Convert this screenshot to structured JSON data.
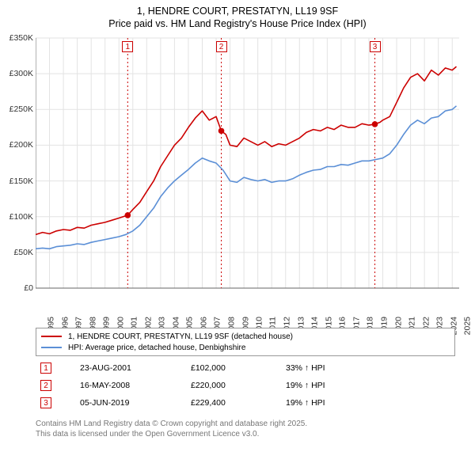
{
  "title_line1": "1, HENDRE COURT, PRESTATYN, LL19 9SF",
  "title_line2": "Price paid vs. HM Land Registry's House Price Index (HPI)",
  "chart": {
    "type": "line",
    "background_color": "#ffffff",
    "grid_color": "#e3e3e3",
    "axis_color": "#666666",
    "x_years": [
      1995,
      1996,
      1997,
      1998,
      1999,
      2000,
      2001,
      2002,
      2003,
      2004,
      2005,
      2006,
      2007,
      2008,
      2009,
      2010,
      2011,
      2012,
      2013,
      2014,
      2015,
      2016,
      2017,
      2018,
      2019,
      2020,
      2021,
      2022,
      2023,
      2024,
      2025
    ],
    "x_min": 1995,
    "x_max": 2025.5,
    "y_min": 0,
    "y_max": 350000,
    "y_tick_step": 50000,
    "y_tick_labels": [
      "£0",
      "£50K",
      "£100K",
      "£150K",
      "£200K",
      "£250K",
      "£300K",
      "£350K"
    ],
    "series": [
      {
        "name": "1, HENDRE COURT, PRESTATYN, LL19 9SF (detached house)",
        "color": "#cc0000",
        "width": 1.6,
        "points": [
          [
            1995,
            75000
          ],
          [
            1995.5,
            78000
          ],
          [
            1996,
            76000
          ],
          [
            1996.5,
            80000
          ],
          [
            1997,
            82000
          ],
          [
            1997.5,
            81000
          ],
          [
            1998,
            85000
          ],
          [
            1998.5,
            84000
          ],
          [
            1999,
            88000
          ],
          [
            1999.5,
            90000
          ],
          [
            2000,
            92000
          ],
          [
            2000.5,
            95000
          ],
          [
            2001,
            98000
          ],
          [
            2001.63,
            102000
          ],
          [
            2002,
            110000
          ],
          [
            2002.5,
            120000
          ],
          [
            2003,
            135000
          ],
          [
            2003.5,
            150000
          ],
          [
            2004,
            170000
          ],
          [
            2004.5,
            185000
          ],
          [
            2005,
            200000
          ],
          [
            2005.5,
            210000
          ],
          [
            2006,
            225000
          ],
          [
            2006.5,
            238000
          ],
          [
            2007,
            248000
          ],
          [
            2007.5,
            235000
          ],
          [
            2008,
            240000
          ],
          [
            2008.37,
            220000
          ],
          [
            2008.7,
            215000
          ],
          [
            2009,
            200000
          ],
          [
            2009.5,
            198000
          ],
          [
            2010,
            210000
          ],
          [
            2010.5,
            205000
          ],
          [
            2011,
            200000
          ],
          [
            2011.5,
            205000
          ],
          [
            2012,
            198000
          ],
          [
            2012.5,
            202000
          ],
          [
            2013,
            200000
          ],
          [
            2013.5,
            205000
          ],
          [
            2014,
            210000
          ],
          [
            2014.5,
            218000
          ],
          [
            2015,
            222000
          ],
          [
            2015.5,
            220000
          ],
          [
            2016,
            225000
          ],
          [
            2016.5,
            222000
          ],
          [
            2017,
            228000
          ],
          [
            2017.5,
            225000
          ],
          [
            2018,
            225000
          ],
          [
            2018.5,
            230000
          ],
          [
            2019,
            228000
          ],
          [
            2019.43,
            229400
          ],
          [
            2019.8,
            232000
          ],
          [
            2020,
            235000
          ],
          [
            2020.5,
            240000
          ],
          [
            2021,
            260000
          ],
          [
            2021.5,
            280000
          ],
          [
            2022,
            295000
          ],
          [
            2022.5,
            300000
          ],
          [
            2023,
            290000
          ],
          [
            2023.5,
            305000
          ],
          [
            2024,
            298000
          ],
          [
            2024.5,
            308000
          ],
          [
            2025,
            305000
          ],
          [
            2025.3,
            310000
          ]
        ]
      },
      {
        "name": "HPI: Average price, detached house, Denbighshire",
        "color": "#5b8fd6",
        "width": 1.6,
        "points": [
          [
            1995,
            55000
          ],
          [
            1995.5,
            56000
          ],
          [
            1996,
            55000
          ],
          [
            1996.5,
            58000
          ],
          [
            1997,
            59000
          ],
          [
            1997.5,
            60000
          ],
          [
            1998,
            62000
          ],
          [
            1998.5,
            61000
          ],
          [
            1999,
            64000
          ],
          [
            1999.5,
            66000
          ],
          [
            2000,
            68000
          ],
          [
            2000.5,
            70000
          ],
          [
            2001,
            72000
          ],
          [
            2001.5,
            75000
          ],
          [
            2002,
            80000
          ],
          [
            2002.5,
            88000
          ],
          [
            2003,
            100000
          ],
          [
            2003.5,
            112000
          ],
          [
            2004,
            128000
          ],
          [
            2004.5,
            140000
          ],
          [
            2005,
            150000
          ],
          [
            2005.5,
            158000
          ],
          [
            2006,
            166000
          ],
          [
            2006.5,
            175000
          ],
          [
            2007,
            182000
          ],
          [
            2007.5,
            178000
          ],
          [
            2008,
            175000
          ],
          [
            2008.5,
            165000
          ],
          [
            2009,
            150000
          ],
          [
            2009.5,
            148000
          ],
          [
            2010,
            155000
          ],
          [
            2010.5,
            152000
          ],
          [
            2011,
            150000
          ],
          [
            2011.5,
            152000
          ],
          [
            2012,
            148000
          ],
          [
            2012.5,
            150000
          ],
          [
            2013,
            150000
          ],
          [
            2013.5,
            153000
          ],
          [
            2014,
            158000
          ],
          [
            2014.5,
            162000
          ],
          [
            2015,
            165000
          ],
          [
            2015.5,
            166000
          ],
          [
            2016,
            170000
          ],
          [
            2016.5,
            170000
          ],
          [
            2017,
            173000
          ],
          [
            2017.5,
            172000
          ],
          [
            2018,
            175000
          ],
          [
            2018.5,
            178000
          ],
          [
            2019,
            178000
          ],
          [
            2019.5,
            180000
          ],
          [
            2020,
            182000
          ],
          [
            2020.5,
            188000
          ],
          [
            2021,
            200000
          ],
          [
            2021.5,
            215000
          ],
          [
            2022,
            228000
          ],
          [
            2022.5,
            235000
          ],
          [
            2023,
            230000
          ],
          [
            2023.5,
            238000
          ],
          [
            2024,
            240000
          ],
          [
            2024.5,
            248000
          ],
          [
            2025,
            250000
          ],
          [
            2025.3,
            255000
          ]
        ]
      }
    ],
    "markers": [
      {
        "n": "1",
        "x": 2001.63,
        "y": 102000
      },
      {
        "n": "2",
        "x": 2008.37,
        "y": 220000
      },
      {
        "n": "3",
        "x": 2019.43,
        "y": 229400
      }
    ]
  },
  "legend": {
    "border_color": "#999999",
    "items": [
      {
        "color": "#cc0000",
        "label": "1, HENDRE COURT, PRESTATYN, LL19 9SF (detached house)"
      },
      {
        "color": "#5b8fd6",
        "label": "HPI: Average price, detached house, Denbighshire"
      }
    ]
  },
  "marker_table": [
    {
      "n": "1",
      "date": "23-AUG-2001",
      "price": "£102,000",
      "diff": "33% ↑ HPI"
    },
    {
      "n": "2",
      "date": "16-MAY-2008",
      "price": "£220,000",
      "diff": "19% ↑ HPI"
    },
    {
      "n": "3",
      "date": "05-JUN-2019",
      "price": "£229,400",
      "diff": "19% ↑ HPI"
    }
  ],
  "footer_line1": "Contains HM Land Registry data © Crown copyright and database right 2025.",
  "footer_line2": "This data is licensed under the Open Government Licence v3.0."
}
